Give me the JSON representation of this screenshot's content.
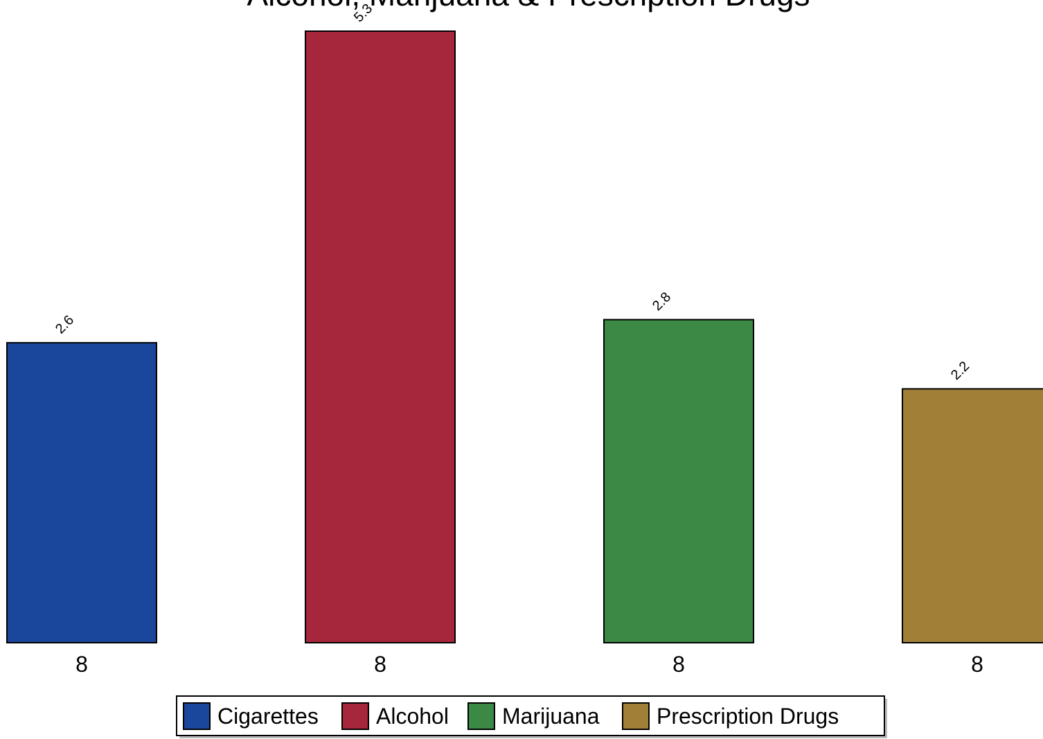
{
  "chart_data": {
    "type": "bar",
    "title": "Alcohol, Marijuana & Prescription Drugs",
    "categories": [
      "8",
      "8",
      "8",
      "8"
    ],
    "series": [
      {
        "name": "Cigarettes",
        "value": 2.6,
        "label": "2.6",
        "color": "#1a479c"
      },
      {
        "name": "Alcohol",
        "value": 5.3,
        "label": "5.3",
        "color": "#a6273b"
      },
      {
        "name": "Marijuana",
        "value": 2.8,
        "label": "2.8",
        "color": "#3b8945"
      },
      {
        "name": "Prescription Drugs",
        "value": 2.2,
        "label": "2.2",
        "color": "#a07f36"
      }
    ],
    "xlabel": "",
    "ylabel": "",
    "ylim": [
      0,
      5.3
    ],
    "grid": false,
    "legend_position": "bottom-center"
  }
}
